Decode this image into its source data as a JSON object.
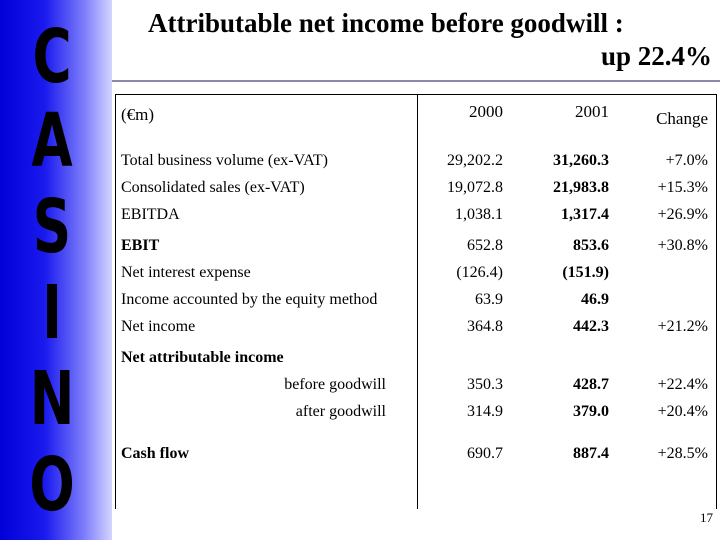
{
  "sidebar": {
    "letters": [
      "C",
      "A",
      "S",
      "I",
      "N",
      "O"
    ],
    "color": "#0000d8"
  },
  "title": {
    "line1": "Attributable net income before goodwill :",
    "line2": "up 22.4%"
  },
  "table": {
    "unit_label": "(€m)",
    "headers": {
      "y2000": "2000",
      "y2001": "2001",
      "change": "Change"
    },
    "rows": [
      {
        "label": "Total business volume (ex-VAT)",
        "y2000": "29,202.2",
        "y2001": "31,260.3",
        "change": "+7.0%"
      },
      {
        "label": "Consolidated sales (ex-VAT)",
        "y2000": "19,072.8",
        "y2001": "21,983.8",
        "change": "+15.3%"
      },
      {
        "label": "EBITDA",
        "y2000": "1,038.1",
        "y2001": "1,317.4",
        "change": "+26.9%"
      },
      {
        "label": "EBIT",
        "y2000": "652.8",
        "y2001": "853.6",
        "change": "+30.8%"
      },
      {
        "label": "Net interest expense",
        "y2000": "(126.4)",
        "y2001": "(151.9)",
        "change": ""
      },
      {
        "label": "Income accounted by the equity method",
        "y2000": "63.9",
        "y2001": "46.9",
        "change": ""
      },
      {
        "label": "Net income",
        "y2000": "364.8",
        "y2001": "442.3",
        "change": "+21.2%"
      },
      {
        "label": "Net attributable income",
        "y2000": "",
        "y2001": "",
        "change": ""
      },
      {
        "label": "before goodwill",
        "y2000": "350.3",
        "y2001": "428.7",
        "change": "+22.4%"
      },
      {
        "label": "after goodwill",
        "y2000": "314.9",
        "y2001": "379.0",
        "change": "+20.4%"
      },
      {
        "label": "Cash flow",
        "y2000": "690.7",
        "y2001": "887.4",
        "change": "+28.5%"
      }
    ]
  },
  "page_number": "17"
}
